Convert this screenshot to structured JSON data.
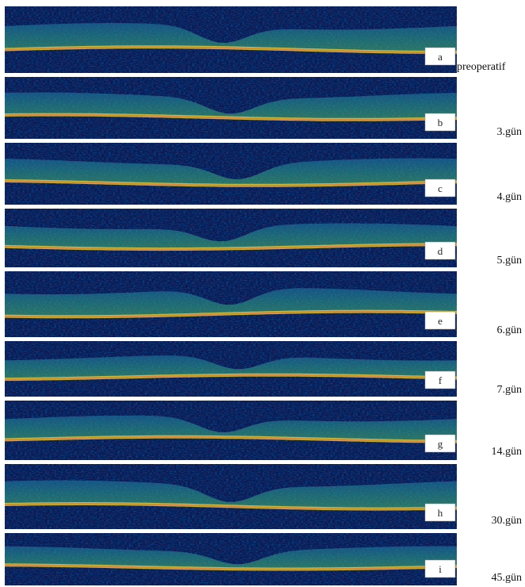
{
  "panels": [
    {
      "letter": "a",
      "day": "preoperatif"
    },
    {
      "letter": "b",
      "day": "3.gün"
    },
    {
      "letter": "c",
      "day": "4.gün"
    },
    {
      "letter": "d",
      "day": "5.gün"
    },
    {
      "letter": "e",
      "day": "6.gün"
    },
    {
      "letter": "f",
      "day": "7.gün"
    },
    {
      "letter": "g",
      "day": "14.gün"
    },
    {
      "letter": "h",
      "day": "30.gün"
    },
    {
      "letter": "i",
      "day": "45.gün"
    }
  ]
}
